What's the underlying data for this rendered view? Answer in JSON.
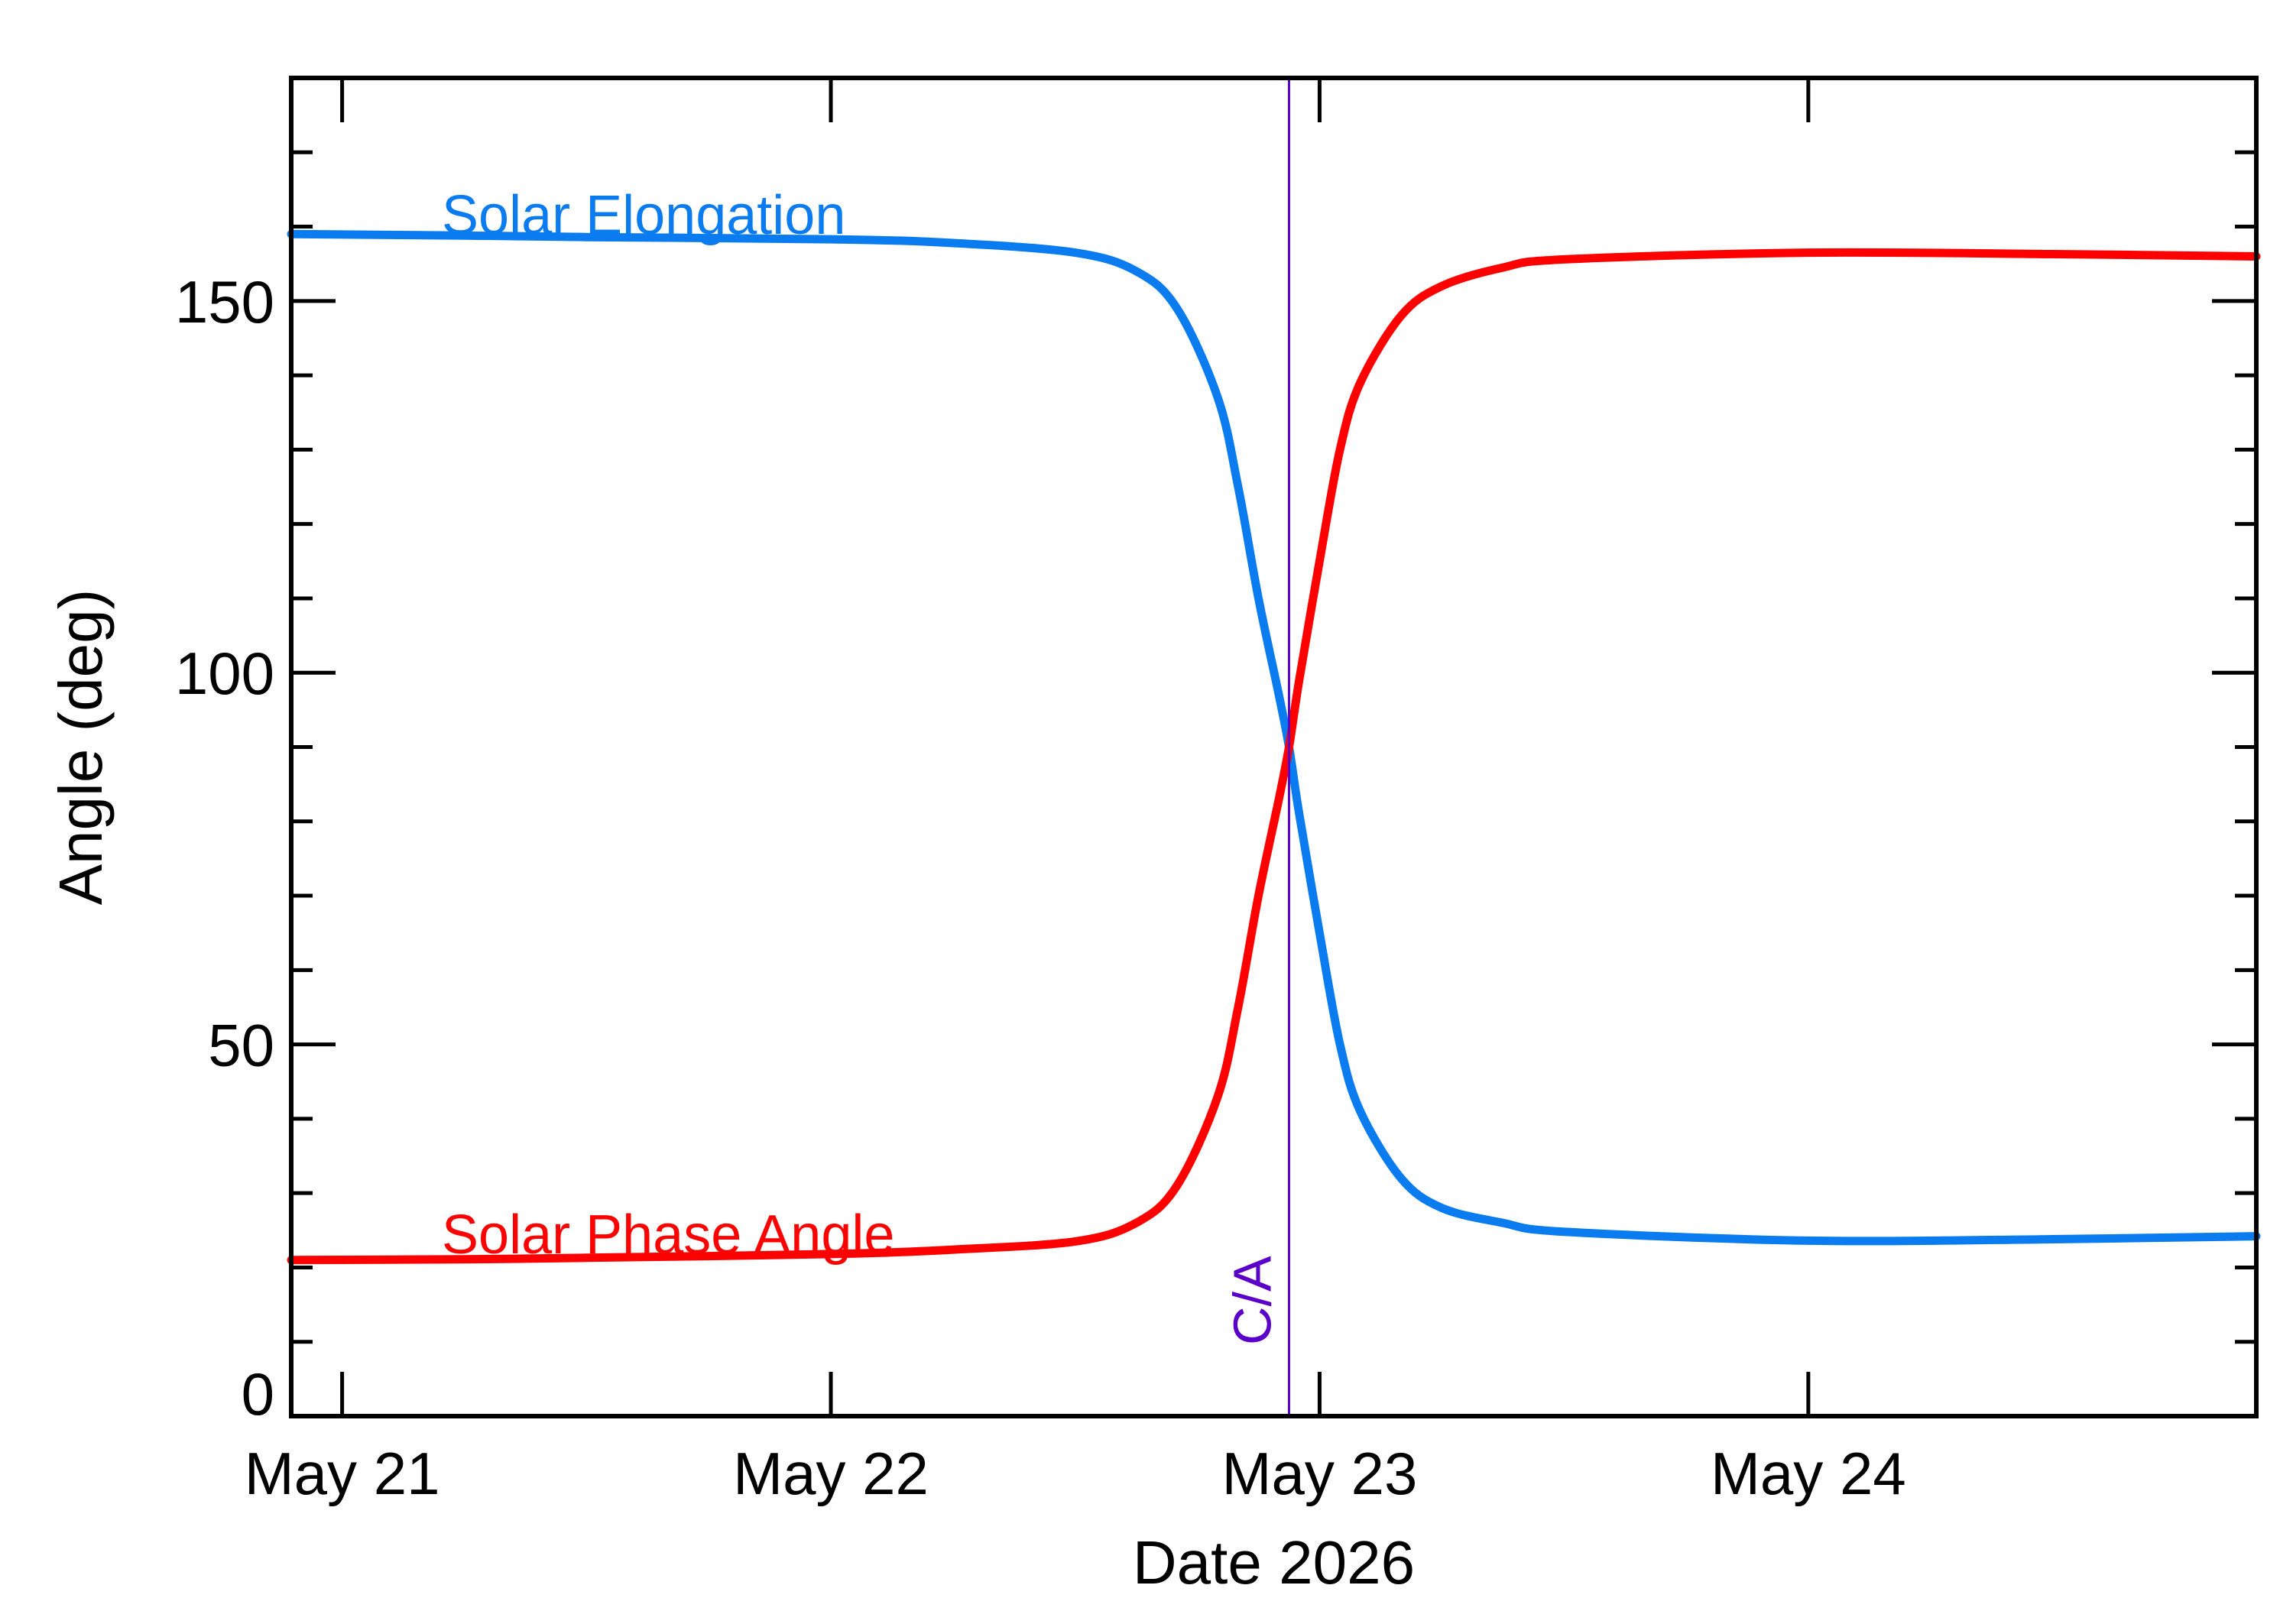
{
  "chart_data": {
    "type": "line",
    "title": "",
    "xlabel": "Date 2026",
    "ylabel": "Angle (deg)",
    "x_tick_labels": [
      "May 21",
      "May 22",
      "May 23",
      "May 24"
    ],
    "x_tick_values": [
      "2026-05-21",
      "2026-05-22",
      "2026-05-23",
      "2026-05-24"
    ],
    "y_tick_labels": [
      "0",
      "50",
      "100",
      "150"
    ],
    "y_tick_values": [
      0,
      50,
      100,
      150
    ],
    "xlim": [
      "2026-05-20 21:30",
      "2026-05-24 22:00"
    ],
    "ylim": [
      0,
      180
    ],
    "grid": false,
    "closest_approach": {
      "label": "C/A",
      "date": "2026-05-22 22:30",
      "color": "#5a00c8"
    },
    "series": [
      {
        "name": "Solar Elongation",
        "color": "#0a7cf0",
        "points": [
          [
            "2026-05-20 21:30",
            159.0
          ],
          [
            "2026-05-21 06:00",
            158.8
          ],
          [
            "2026-05-21 12:00",
            158.6
          ],
          [
            "2026-05-22 00:00",
            158.3
          ],
          [
            "2026-05-22 06:00",
            157.8
          ],
          [
            "2026-05-22 12:00",
            156.5
          ],
          [
            "2026-05-22 15:00",
            154.0
          ],
          [
            "2026-05-22 17:00",
            149.0
          ],
          [
            "2026-05-22 19:00",
            137.0
          ],
          [
            "2026-05-22 20:00",
            125.0
          ],
          [
            "2026-05-22 21:00",
            110.0
          ],
          [
            "2026-05-22 22:00",
            97.0
          ],
          [
            "2026-05-22 22:30",
            90.0
          ],
          [
            "2026-05-22 23:00",
            81.0
          ],
          [
            "2026-05-23 00:00",
            65.0
          ],
          [
            "2026-05-23 01:00",
            50.0
          ],
          [
            "2026-05-23 02:00",
            41.0
          ],
          [
            "2026-05-23 04:00",
            32.0
          ],
          [
            "2026-05-23 06:00",
            28.0
          ],
          [
            "2026-05-23 09:00",
            26.0
          ],
          [
            "2026-05-23 12:00",
            24.8
          ],
          [
            "2026-05-24 00:00",
            23.6
          ],
          [
            "2026-05-24 12:00",
            23.8
          ],
          [
            "2026-05-24 22:00",
            24.2
          ]
        ]
      },
      {
        "name": "Solar Phase Angle",
        "color": "#ff0000",
        "points": [
          [
            "2026-05-20 21:30",
            21.0
          ],
          [
            "2026-05-21 06:00",
            21.1
          ],
          [
            "2026-05-21 12:00",
            21.3
          ],
          [
            "2026-05-22 00:00",
            21.8
          ],
          [
            "2026-05-22 06:00",
            22.4
          ],
          [
            "2026-05-22 12:00",
            23.5
          ],
          [
            "2026-05-22 15:00",
            26.0
          ],
          [
            "2026-05-22 17:00",
            31.0
          ],
          [
            "2026-05-22 19:00",
            43.0
          ],
          [
            "2026-05-22 20:00",
            55.0
          ],
          [
            "2026-05-22 21:00",
            70.0
          ],
          [
            "2026-05-22 22:00",
            83.0
          ],
          [
            "2026-05-22 22:30",
            90.0
          ],
          [
            "2026-05-22 23:00",
            99.0
          ],
          [
            "2026-05-23 00:00",
            115.0
          ],
          [
            "2026-05-23 01:00",
            130.0
          ],
          [
            "2026-05-23 02:00",
            139.0
          ],
          [
            "2026-05-23 04:00",
            148.0
          ],
          [
            "2026-05-23 06:00",
            152.0
          ],
          [
            "2026-05-23 09:00",
            154.5
          ],
          [
            "2026-05-23 12:00",
            155.6
          ],
          [
            "2026-05-24 00:00",
            156.5
          ],
          [
            "2026-05-24 12:00",
            156.3
          ],
          [
            "2026-05-24 22:00",
            156.0
          ]
        ]
      }
    ]
  }
}
